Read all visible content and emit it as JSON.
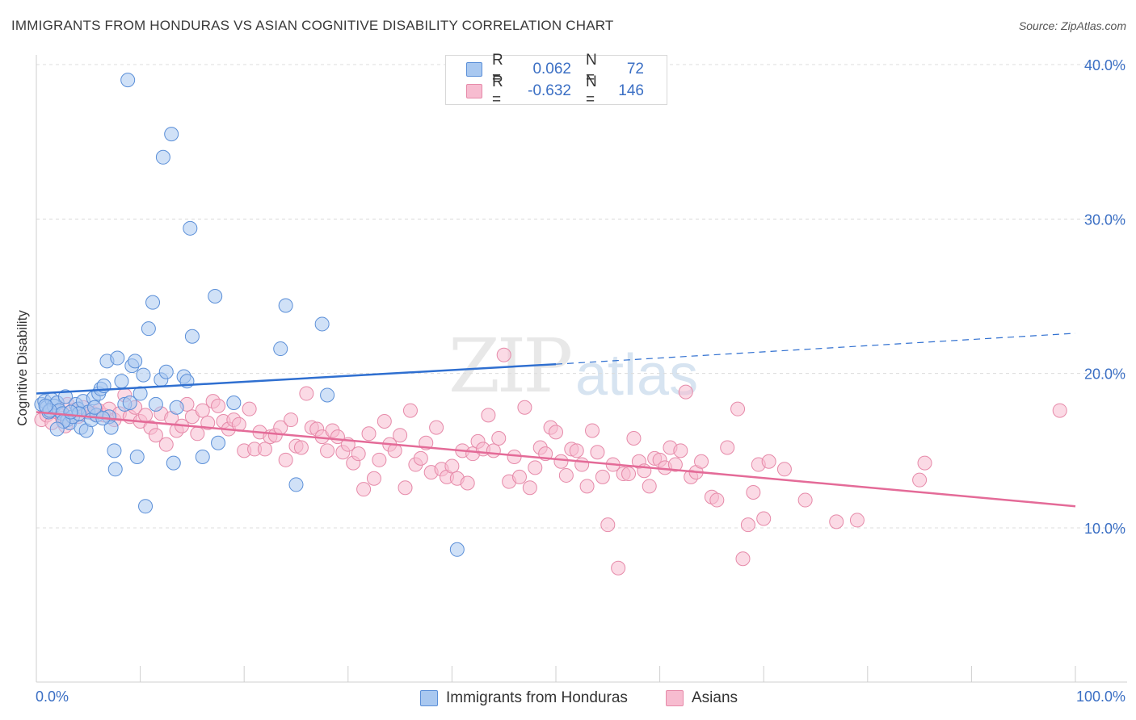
{
  "header": {
    "title": "IMMIGRANTS FROM HONDURAS VS ASIAN COGNITIVE DISABILITY CORRELATION CHART",
    "source": "Source: ZipAtlas.com"
  },
  "watermark": {
    "zip": "ZIP",
    "atlas": "atlas"
  },
  "legend": {
    "r_label": "R =",
    "n_label": "N =",
    "rows": [
      {
        "r": "0.062",
        "n": "72"
      },
      {
        "r": "-0.632",
        "n": "146"
      }
    ]
  },
  "bottom_legend": {
    "items": [
      {
        "label": "Immigrants from Honduras"
      },
      {
        "label": "Asians"
      }
    ]
  },
  "colors": {
    "blue_fill": "#a9c8f0",
    "blue_stroke": "#5b8fd8",
    "blue_line": "#2f6fd0",
    "pink_fill": "#f7bcd0",
    "pink_stroke": "#e68aa9",
    "pink_line": "#e46b98",
    "tick_label": "#3b6fc4"
  },
  "chart_data": {
    "type": "scatter",
    "title": "IMMIGRANTS FROM HONDURAS VS ASIAN COGNITIVE DISABILITY CORRELATION CHART",
    "xlabel": "",
    "ylabel": "Cognitive Disability",
    "xlim": [
      0,
      100
    ],
    "ylim": [
      0,
      42
    ],
    "x_tick_labels": [
      "0.0%",
      "100.0%"
    ],
    "y_ticks": [
      10,
      20,
      30,
      40
    ],
    "y_tick_labels": [
      "10.0%",
      "20.0%",
      "30.0%",
      "40.0%"
    ],
    "grid": true,
    "series": [
      {
        "name": "Immigrants from Honduras",
        "r": 0.062,
        "n": 72,
        "trend": {
          "x0": 0,
          "y0": 18.7,
          "x1": 50,
          "y1": 20.6,
          "dashed_to_x": 100,
          "dashed_to_y": 22.6
        },
        "points": [
          [
            0.5,
            18.0
          ],
          [
            0.8,
            18.2
          ],
          [
            1.0,
            17.8
          ],
          [
            1.2,
            17.5
          ],
          [
            1.5,
            18.3
          ],
          [
            1.7,
            17.9
          ],
          [
            2.0,
            18.1
          ],
          [
            2.2,
            17.6
          ],
          [
            2.5,
            17.4
          ],
          [
            2.8,
            18.5
          ],
          [
            3.0,
            17.0
          ],
          [
            3.2,
            16.8
          ],
          [
            3.5,
            17.2
          ],
          [
            3.8,
            18.0
          ],
          [
            4.0,
            17.7
          ],
          [
            4.3,
            16.5
          ],
          [
            4.5,
            18.2
          ],
          [
            4.8,
            16.3
          ],
          [
            5.0,
            17.5
          ],
          [
            5.3,
            17.0
          ],
          [
            5.5,
            18.4
          ],
          [
            5.8,
            17.3
          ],
          [
            6.0,
            18.7
          ],
          [
            6.2,
            19.0
          ],
          [
            6.5,
            19.2
          ],
          [
            6.8,
            20.8
          ],
          [
            7.0,
            17.2
          ],
          [
            7.2,
            16.5
          ],
          [
            7.5,
            15.0
          ],
          [
            7.8,
            21.0
          ],
          [
            8.2,
            19.5
          ],
          [
            8.5,
            18.0
          ],
          [
            8.8,
            39.0
          ],
          [
            9.0,
            18.1
          ],
          [
            9.2,
            20.5
          ],
          [
            9.5,
            20.8
          ],
          [
            9.7,
            14.6
          ],
          [
            10.0,
            18.7
          ],
          [
            10.3,
            19.9
          ],
          [
            10.5,
            11.4
          ],
          [
            10.8,
            22.9
          ],
          [
            11.2,
            24.6
          ],
          [
            11.5,
            18.0
          ],
          [
            12.0,
            19.6
          ],
          [
            12.2,
            34.0
          ],
          [
            12.5,
            20.1
          ],
          [
            13.0,
            35.5
          ],
          [
            13.2,
            14.2
          ],
          [
            13.5,
            17.8
          ],
          [
            14.2,
            19.8
          ],
          [
            14.5,
            19.5
          ],
          [
            14.8,
            29.4
          ],
          [
            15.0,
            22.4
          ],
          [
            16.0,
            14.6
          ],
          [
            17.5,
            15.5
          ],
          [
            17.2,
            25.0
          ],
          [
            19.0,
            18.1
          ],
          [
            23.5,
            21.6
          ],
          [
            24.0,
            24.4
          ],
          [
            25.0,
            12.8
          ],
          [
            27.5,
            23.2
          ],
          [
            28.0,
            18.6
          ],
          [
            40.5,
            8.6
          ],
          [
            1.3,
            17.6
          ],
          [
            2.6,
            16.9
          ],
          [
            4.1,
            17.4
          ],
          [
            5.6,
            17.8
          ],
          [
            6.4,
            17.1
          ],
          [
            3.3,
            17.5
          ],
          [
            0.9,
            17.9
          ],
          [
            7.6,
            13.8
          ],
          [
            2.0,
            16.4
          ]
        ]
      },
      {
        "name": "Asians",
        "r": -0.632,
        "n": 146,
        "trend": {
          "x0": 0,
          "y0": 17.5,
          "x1": 100,
          "y1": 11.4
        },
        "points": [
          [
            0.5,
            17.0
          ],
          [
            1.0,
            17.3
          ],
          [
            1.5,
            16.8
          ],
          [
            2.0,
            17.5
          ],
          [
            2.5,
            17.1
          ],
          [
            3.0,
            18.0
          ],
          [
            3.5,
            17.6
          ],
          [
            4.0,
            17.2
          ],
          [
            4.5,
            17.8
          ],
          [
            5.0,
            17.5
          ],
          [
            5.5,
            17.4
          ],
          [
            6.0,
            17.6
          ],
          [
            6.5,
            17.3
          ],
          [
            7.0,
            17.7
          ],
          [
            7.5,
            17.0
          ],
          [
            8.0,
            17.4
          ],
          [
            8.5,
            18.6
          ],
          [
            9.0,
            17.2
          ],
          [
            9.5,
            17.8
          ],
          [
            10.0,
            16.9
          ],
          [
            10.5,
            17.3
          ],
          [
            11.0,
            16.5
          ],
          [
            11.5,
            16.0
          ],
          [
            12.0,
            17.4
          ],
          [
            12.5,
            15.4
          ],
          [
            13.0,
            17.1
          ],
          [
            13.5,
            16.3
          ],
          [
            14.0,
            16.6
          ],
          [
            14.5,
            18.0
          ],
          [
            15.0,
            17.2
          ],
          [
            15.5,
            16.1
          ],
          [
            16.0,
            17.6
          ],
          [
            16.5,
            16.8
          ],
          [
            17.0,
            18.2
          ],
          [
            17.5,
            17.9
          ],
          [
            18.0,
            16.9
          ],
          [
            18.5,
            16.4
          ],
          [
            19.0,
            17.0
          ],
          [
            19.5,
            16.7
          ],
          [
            20.0,
            15.0
          ],
          [
            20.5,
            17.7
          ],
          [
            21.0,
            15.1
          ],
          [
            21.5,
            16.2
          ],
          [
            22.0,
            15.1
          ],
          [
            22.5,
            15.9
          ],
          [
            23.0,
            16.0
          ],
          [
            23.5,
            16.5
          ],
          [
            24.0,
            14.4
          ],
          [
            24.5,
            17.0
          ],
          [
            25.0,
            15.3
          ],
          [
            25.5,
            15.2
          ],
          [
            26.0,
            18.7
          ],
          [
            26.5,
            16.5
          ],
          [
            27.0,
            16.4
          ],
          [
            27.5,
            15.9
          ],
          [
            28.0,
            15.0
          ],
          [
            28.5,
            16.3
          ],
          [
            29.0,
            15.9
          ],
          [
            29.5,
            14.9
          ],
          [
            30.0,
            15.4
          ],
          [
            30.5,
            14.2
          ],
          [
            31.0,
            14.8
          ],
          [
            31.5,
            12.5
          ],
          [
            32.0,
            16.1
          ],
          [
            32.5,
            13.2
          ],
          [
            33.0,
            14.4
          ],
          [
            33.5,
            16.9
          ],
          [
            34.0,
            15.4
          ],
          [
            34.5,
            15.0
          ],
          [
            35.0,
            16.0
          ],
          [
            35.5,
            12.6
          ],
          [
            36.0,
            17.6
          ],
          [
            36.5,
            14.1
          ],
          [
            37.0,
            14.5
          ],
          [
            37.5,
            15.5
          ],
          [
            38.0,
            13.6
          ],
          [
            38.5,
            16.5
          ],
          [
            39.0,
            13.8
          ],
          [
            39.5,
            13.3
          ],
          [
            40.0,
            14.0
          ],
          [
            40.5,
            13.2
          ],
          [
            41.0,
            15.0
          ],
          [
            41.5,
            12.9
          ],
          [
            42.0,
            14.8
          ],
          [
            42.5,
            15.6
          ],
          [
            43.0,
            15.1
          ],
          [
            43.5,
            17.3
          ],
          [
            44.0,
            15.0
          ],
          [
            44.5,
            15.8
          ],
          [
            45.0,
            21.2
          ],
          [
            45.5,
            13.0
          ],
          [
            46.0,
            14.6
          ],
          [
            46.5,
            13.3
          ],
          [
            47.0,
            17.8
          ],
          [
            47.5,
            12.6
          ],
          [
            48.0,
            13.9
          ],
          [
            48.5,
            15.2
          ],
          [
            49.0,
            14.8
          ],
          [
            49.5,
            16.5
          ],
          [
            50.0,
            16.2
          ],
          [
            50.5,
            14.3
          ],
          [
            51.0,
            13.4
          ],
          [
            51.5,
            15.1
          ],
          [
            52.0,
            15.0
          ],
          [
            52.5,
            14.1
          ],
          [
            53.0,
            12.7
          ],
          [
            53.5,
            16.3
          ],
          [
            54.0,
            14.9
          ],
          [
            54.5,
            13.3
          ],
          [
            55.0,
            10.2
          ],
          [
            55.5,
            14.1
          ],
          [
            56.0,
            7.4
          ],
          [
            56.5,
            13.5
          ],
          [
            57.0,
            13.5
          ],
          [
            57.5,
            15.8
          ],
          [
            58.0,
            14.3
          ],
          [
            58.5,
            13.7
          ],
          [
            59.0,
            12.7
          ],
          [
            59.5,
            14.5
          ],
          [
            60.0,
            14.4
          ],
          [
            60.5,
            13.9
          ],
          [
            61.0,
            15.2
          ],
          [
            61.5,
            14.1
          ],
          [
            62.0,
            15.0
          ],
          [
            62.5,
            18.8
          ],
          [
            63.0,
            13.3
          ],
          [
            63.5,
            13.6
          ],
          [
            64.0,
            14.3
          ],
          [
            65.0,
            12.0
          ],
          [
            65.5,
            11.8
          ],
          [
            66.5,
            15.2
          ],
          [
            67.5,
            17.7
          ],
          [
            68.0,
            8.0
          ],
          [
            68.5,
            10.2
          ],
          [
            69.0,
            12.3
          ],
          [
            69.5,
            14.1
          ],
          [
            70.0,
            10.6
          ],
          [
            70.5,
            14.3
          ],
          [
            72.0,
            13.8
          ],
          [
            74.0,
            11.8
          ],
          [
            77.0,
            10.4
          ],
          [
            79.0,
            10.5
          ],
          [
            85.0,
            13.1
          ],
          [
            85.5,
            14.2
          ],
          [
            98.5,
            17.6
          ],
          [
            2.8,
            16.6
          ]
        ]
      }
    ]
  }
}
